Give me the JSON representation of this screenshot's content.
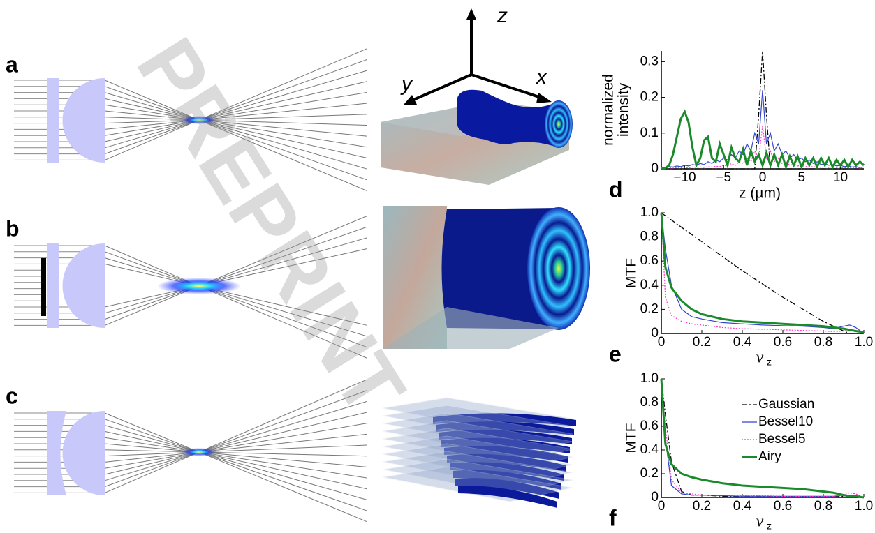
{
  "figure": {
    "panels": [
      "a",
      "b",
      "c"
    ],
    "axes3d": [
      "x",
      "y",
      "z"
    ],
    "watermark": "PREPRINT"
  },
  "chart_data": [
    {
      "type": "line",
      "panel": "d",
      "ylabel": [
        "normalized",
        "intensity"
      ],
      "xlabel": "z (µm)",
      "xlim": [
        -13,
        13
      ],
      "ylim": [
        0,
        0.33
      ],
      "xticks": [
        {
          "value": -10,
          "label": "−10"
        },
        {
          "value": -5,
          "label": "−5"
        },
        0,
        5,
        10
      ],
      "yticks": [
        0,
        0.1,
        0.2,
        0.3
      ],
      "x": [
        -13,
        -12.5,
        -12,
        -11.5,
        -11,
        -10.5,
        -10,
        -9.5,
        -9,
        -8.5,
        -8,
        -7.5,
        -7,
        -6.5,
        -6,
        -5.5,
        -5,
        -4.5,
        -4,
        -3.5,
        -3,
        -2.5,
        -2,
        -1.5,
        -1,
        -0.5,
        0,
        0.5,
        1,
        1.5,
        2,
        2.5,
        3,
        3.5,
        4,
        4.5,
        5,
        5.5,
        6,
        6.5,
        7,
        7.5,
        8,
        8.5,
        9,
        9.5,
        10,
        10.5,
        11,
        11.5,
        12,
        12.5,
        13
      ],
      "series": [
        {
          "color": "#000000",
          "linestyle": "dashdot",
          "linewidth": 1.3,
          "values": [
            0,
            0,
            0,
            0,
            0,
            0,
            0,
            0,
            0,
            0,
            0,
            0,
            0,
            0,
            0,
            0,
            0,
            0,
            0,
            0,
            0,
            0,
            0,
            0,
            0,
            0.15,
            0.33,
            0.15,
            0,
            0,
            0,
            0,
            0,
            0,
            0,
            0,
            0,
            0,
            0,
            0,
            0,
            0,
            0,
            0,
            0,
            0,
            0,
            0,
            0,
            0,
            0,
            0,
            0
          ]
        },
        {
          "color": "#3344cc",
          "linestyle": "solid",
          "linewidth": 1.2,
          "values": [
            0.005,
            0.004,
            0.006,
            0.005,
            0.008,
            0.006,
            0.01,
            0.008,
            0.012,
            0.01,
            0.015,
            0.012,
            0.02,
            0.015,
            0.025,
            0.02,
            0.03,
            0.025,
            0.04,
            0.03,
            0.05,
            0.04,
            0.07,
            0.05,
            0.1,
            0.07,
            0.22,
            0.07,
            0.1,
            0.05,
            0.07,
            0.04,
            0.05,
            0.03,
            0.04,
            0.025,
            0.03,
            0.02,
            0.025,
            0.015,
            0.02,
            0.012,
            0.015,
            0.01,
            0.012,
            0.008,
            0.01,
            0.006,
            0.008,
            0.005,
            0.006,
            0.004,
            0.005
          ]
        },
        {
          "color": "#ff33cc",
          "linestyle": "dotted",
          "linewidth": 1.2,
          "values": [
            0.003,
            0.002,
            0.003,
            0.002,
            0.004,
            0.003,
            0.004,
            0.003,
            0.005,
            0.004,
            0.005,
            0.004,
            0.006,
            0.005,
            0.007,
            0.006,
            0.01,
            0.008,
            0.015,
            0.01,
            0.02,
            0.015,
            0.03,
            0.02,
            0.05,
            0.03,
            0.12,
            0.03,
            0.05,
            0.02,
            0.03,
            0.015,
            0.02,
            0.01,
            0.015,
            0.008,
            0.01,
            0.006,
            0.007,
            0.005,
            0.006,
            0.004,
            0.005,
            0.004,
            0.005,
            0.003,
            0.004,
            0.003,
            0.004,
            0.002,
            0.003,
            0.002,
            0.003
          ]
        },
        {
          "color": "#1a8a2a",
          "linestyle": "solid",
          "linewidth": 3,
          "values": [
            0,
            0.002,
            0.01,
            0.04,
            0.09,
            0.14,
            0.16,
            0.13,
            0.06,
            0.01,
            0.03,
            0.08,
            0.09,
            0.03,
            0.02,
            0.07,
            0.04,
            0.01,
            0.06,
            0.03,
            0.02,
            0.055,
            0.01,
            0.05,
            0.02,
            0.04,
            0.01,
            0.045,
            0.01,
            0.04,
            0.01,
            0.04,
            0.005,
            0.035,
            0.01,
            0.035,
            0.005,
            0.03,
            0.01,
            0.03,
            0.005,
            0.03,
            0.01,
            0.03,
            0.005,
            0.025,
            0.01,
            0.025,
            0.005,
            0.025,
            0.01,
            0.02,
            0.01
          ]
        }
      ]
    },
    {
      "type": "line",
      "panel": "e",
      "ylabel": "MTF",
      "xlabel": "ν",
      "xlabel_subscript": "z",
      "xlim": [
        0,
        1
      ],
      "ylim": [
        0,
        1
      ],
      "xticks": [
        0,
        0.2,
        0.4,
        0.6,
        0.8,
        {
          "value": 1,
          "label": "1.0"
        }
      ],
      "yticks": [
        0,
        0.2,
        0.4,
        0.6,
        0.8,
        {
          "value": 1,
          "label": "1.0"
        }
      ],
      "x": [
        0,
        0.02,
        0.05,
        0.1,
        0.15,
        0.2,
        0.3,
        0.4,
        0.5,
        0.6,
        0.7,
        0.8,
        0.85,
        0.9,
        0.93,
        0.96,
        1
      ],
      "series": [
        {
          "color": "#000000",
          "linestyle": "dashdot",
          "linewidth": 1.3,
          "values": [
            1,
            0.975,
            0.94,
            0.88,
            0.82,
            0.76,
            0.64,
            0.52,
            0.41,
            0.3,
            0.2,
            0.1,
            0.06,
            0.02,
            0,
            0,
            0
          ]
        },
        {
          "color": "#3344cc",
          "linestyle": "solid",
          "linewidth": 1.2,
          "values": [
            1,
            0.7,
            0.4,
            0.2,
            0.14,
            0.12,
            0.09,
            0.08,
            0.07,
            0.065,
            0.06,
            0.05,
            0.04,
            0.06,
            0.07,
            0.05,
            0
          ]
        },
        {
          "color": "#ff33cc",
          "linestyle": "dotted",
          "linewidth": 1.2,
          "values": [
            1,
            0.3,
            0.15,
            0.1,
            0.08,
            0.07,
            0.05,
            0.04,
            0.035,
            0.03,
            0.025,
            0.02,
            0.015,
            0.02,
            0.03,
            0.02,
            0
          ]
        },
        {
          "color": "#1a8a2a",
          "linestyle": "solid",
          "linewidth": 3,
          "values": [
            1,
            0.55,
            0.38,
            0.27,
            0.2,
            0.16,
            0.12,
            0.1,
            0.09,
            0.08,
            0.07,
            0.06,
            0.05,
            0.04,
            0.03,
            0.02,
            0.01
          ]
        }
      ]
    },
    {
      "type": "line",
      "panel": "f",
      "ylabel": "MTF",
      "xlabel": "ν",
      "xlabel_subscript": "z",
      "xlim": [
        0,
        1
      ],
      "ylim": [
        0,
        1
      ],
      "legend": "upper right",
      "xticks": [
        0,
        0.2,
        0.4,
        0.6,
        0.8,
        {
          "value": 1,
          "label": "1.0"
        }
      ],
      "yticks": [
        0,
        0.2,
        0.4,
        0.6,
        0.8,
        {
          "value": 1,
          "label": "1.0"
        }
      ],
      "x": [
        0,
        0.02,
        0.05,
        0.1,
        0.15,
        0.2,
        0.3,
        0.4,
        0.5,
        0.6,
        0.7,
        0.8,
        0.85,
        0.9,
        0.93,
        0.96,
        1
      ],
      "series": [
        {
          "name": "Gaussian",
          "color": "#000000",
          "linestyle": "dashdot",
          "linewidth": 1.3,
          "values": [
            1,
            0.7,
            0.3,
            0.05,
            0.02,
            0.02,
            0.01,
            0.01,
            0.01,
            0.005,
            0.005,
            0.005,
            0.005,
            0.01,
            0.02,
            0.01,
            0
          ]
        },
        {
          "name": "Bessel10",
          "color": "#3344cc",
          "linestyle": "solid",
          "linewidth": 1.2,
          "values": [
            1,
            0.5,
            0.1,
            0.03,
            0.02,
            0.02,
            0.015,
            0.01,
            0.01,
            0.01,
            0.01,
            0.01,
            0.01,
            0.02,
            0.02,
            0.01,
            0
          ]
        },
        {
          "name": "Bessel5",
          "color": "#ff33cc",
          "linestyle": "dotted",
          "linewidth": 1.2,
          "values": [
            1,
            0.6,
            0.15,
            0.04,
            0.03,
            0.02,
            0.02,
            0.015,
            0.015,
            0.01,
            0.01,
            0.01,
            0.01,
            0.02,
            0.04,
            0.03,
            0
          ]
        },
        {
          "name": "Airy",
          "color": "#1a8a2a",
          "linestyle": "solid",
          "linewidth": 3,
          "values": [
            1,
            0.45,
            0.28,
            0.2,
            0.17,
            0.15,
            0.12,
            0.1,
            0.09,
            0.08,
            0.07,
            0.05,
            0.04,
            0.02,
            0.01,
            0.01,
            0
          ]
        }
      ]
    }
  ]
}
